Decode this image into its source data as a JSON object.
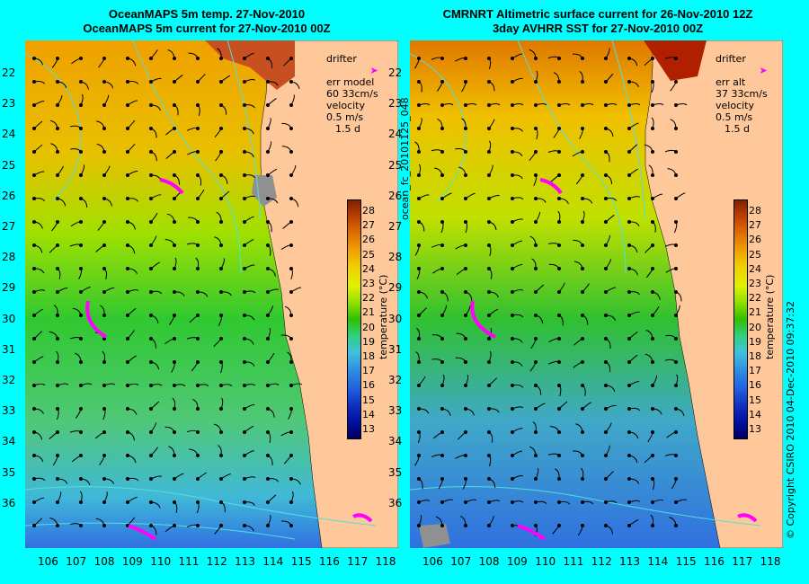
{
  "left": {
    "title_line1": "OceanMAPS 5m temp. 27-Nov-2010",
    "title_line2": "OceanMAPS 5m current for 27-Nov-2010 00Z",
    "legend": {
      "drifter": "drifter",
      "err_label": "err model",
      "err_value": "60 33cm/s",
      "velocity": "velocity",
      "speed": "0.5 m/s",
      "duration": "1.5 d"
    }
  },
  "right": {
    "title_line1": "CMRNRT Altimetric surface current for 26-Nov-2010 12Z",
    "title_line2": "3day AVHRR SST for 27-Nov-2010 00Z",
    "legend": {
      "drifter": "drifter",
      "err_label": "err alt",
      "err_value": "37 33cm/s",
      "velocity": "velocity",
      "speed": "0.5 m/s",
      "duration": "1.5 d"
    }
  },
  "latitudes": [
    "22",
    "23",
    "24",
    "25",
    "26",
    "27",
    "28",
    "29",
    "30",
    "31",
    "32",
    "33",
    "34",
    "35",
    "36"
  ],
  "longitudes": [
    "106",
    "107",
    "108",
    "109",
    "110",
    "111",
    "112",
    "113",
    "114",
    "115",
    "116",
    "117",
    "118"
  ],
  "colorbar": {
    "ticks": [
      "28",
      "27",
      "26",
      "25",
      "24",
      "23",
      "22",
      "21",
      "20",
      "19",
      "18",
      "17",
      "16",
      "15",
      "14",
      "13"
    ],
    "title": "temperature (°C)"
  },
  "middle_label": "ocean_fc_20101125_048",
  "copyright": "© Copyright CSIRO 2010   04-Dec-2010 09:37:32",
  "colors": {
    "background": "#00ffff",
    "land": "#ffc89a",
    "drifter": "#ff00ff"
  }
}
